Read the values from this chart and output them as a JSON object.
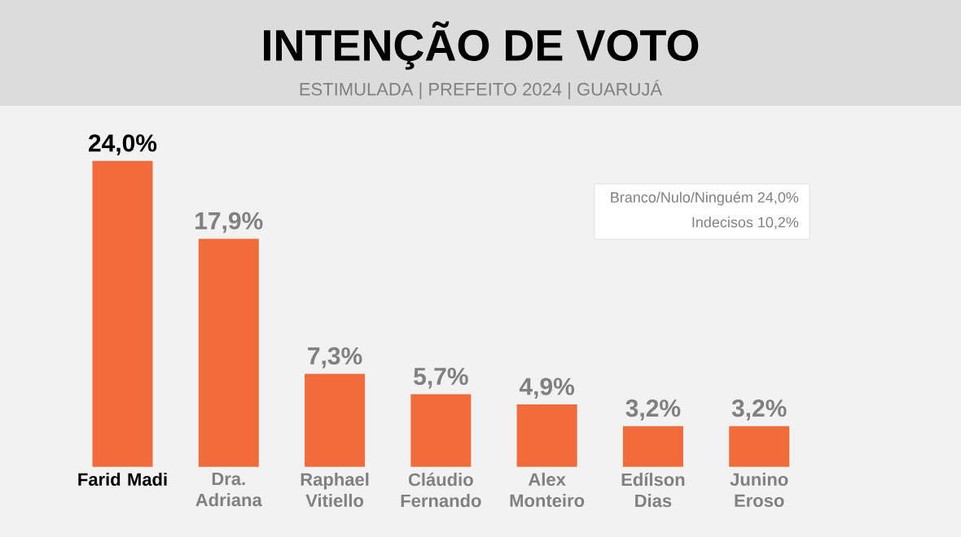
{
  "chart_data": {
    "type": "bar",
    "title": "INTENÇÃO DE VOTO",
    "subtitle": "ESTIMULADA | PREFEITO 2024 | GUARUJÁ",
    "categories": [
      "Farid Madi",
      "Dra. Adriana",
      "Raphael Vitiello",
      "Cláudio Fernando",
      "Alex Monteiro",
      "Edílson Dias",
      "Junino Eroso"
    ],
    "values": [
      24.0,
      17.9,
      7.3,
      5.7,
      4.9,
      3.2,
      3.2
    ],
    "value_labels": [
      "24,0%",
      "17,9%",
      "7,3%",
      "5,7%",
      "4,9%",
      "3,2%",
      "3,2%"
    ],
    "color": "#f26b3a",
    "annotations": [
      "Branco/Nulo/Ninguém 24,0%",
      "Indecisos 10,2%"
    ]
  }
}
